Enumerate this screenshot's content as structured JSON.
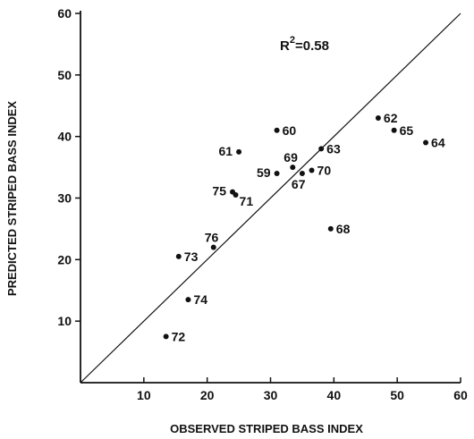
{
  "chart_data": {
    "type": "scatter",
    "xlabel": "OBSERVED STRIPED BASS INDEX",
    "ylabel": "PREDICTED STRIPED BASS INDEX",
    "xlim": [
      0,
      60
    ],
    "ylim": [
      0,
      60
    ],
    "xticks": [
      "10",
      "20",
      "30",
      "40",
      "50",
      "60"
    ],
    "yticks": [
      "10",
      "20",
      "30",
      "40",
      "50",
      "60"
    ],
    "grid": false,
    "annotation": {
      "r2_label": "R",
      "r2_sup": "2",
      "r2_rest": "=0.58"
    },
    "reference_line": {
      "type": "1:1",
      "from": [
        0,
        0
      ],
      "to": [
        60,
        60
      ]
    },
    "points": [
      {
        "label": "60",
        "x": 31.0,
        "y": 41.0
      },
      {
        "label": "61",
        "x": 25.0,
        "y": 37.5
      },
      {
        "label": "62",
        "x": 47.0,
        "y": 43.0
      },
      {
        "label": "63",
        "x": 38.0,
        "y": 38.0
      },
      {
        "label": "64",
        "x": 54.5,
        "y": 39.0
      },
      {
        "label": "65",
        "x": 49.5,
        "y": 41.0
      },
      {
        "label": "67",
        "x": 35.0,
        "y": 34.0
      },
      {
        "label": "68",
        "x": 39.5,
        "y": 25.0
      },
      {
        "label": "69",
        "x": 33.5,
        "y": 35.0
      },
      {
        "label": "70",
        "x": 36.5,
        "y": 34.5
      },
      {
        "label": "59",
        "x": 31.0,
        "y": 34.0
      },
      {
        "label": "71",
        "x": 24.5,
        "y": 30.5
      },
      {
        "label": "72",
        "x": 13.5,
        "y": 7.5
      },
      {
        "label": "73",
        "x": 15.5,
        "y": 20.5
      },
      {
        "label": "74",
        "x": 17.0,
        "y": 13.5
      },
      {
        "label": "75",
        "x": 24.0,
        "y": 31.0
      },
      {
        "label": "76",
        "x": 21.0,
        "y": 22.0
      }
    ]
  }
}
